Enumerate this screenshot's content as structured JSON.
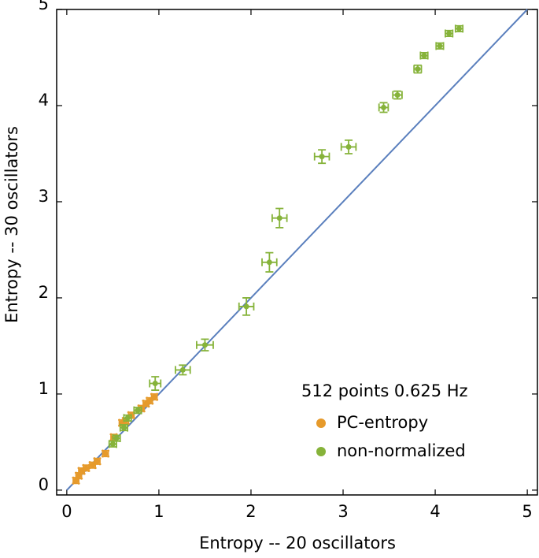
{
  "chart_data": {
    "type": "scatter",
    "xlabel": "Entropy -- 20 oscillators",
    "ylabel": "Entropy -- 30 oscillators",
    "legend_title": "512 points 0.625 Hz",
    "legend": "lower right",
    "xlim": [
      -0.11,
      5.11
    ],
    "ylim": [
      -0.05,
      5
    ],
    "xticks": [
      0,
      1,
      2,
      3,
      4,
      5
    ],
    "yticks": [
      0,
      1,
      2,
      3,
      4,
      5
    ],
    "diagonal": {
      "x": [
        0,
        5
      ],
      "y": [
        0,
        5
      ],
      "color": "#5a7fbd"
    },
    "series": [
      {
        "name": "PC-entropy",
        "color": "#e69a2b",
        "x": [
          0.1,
          0.13,
          0.16,
          0.21,
          0.28,
          0.33,
          0.42,
          0.51,
          0.6,
          0.64,
          0.7,
          0.81,
          0.86,
          0.9,
          0.95
        ],
        "values": [
          0.1,
          0.15,
          0.2,
          0.23,
          0.26,
          0.3,
          0.38,
          0.55,
          0.7,
          0.72,
          0.78,
          0.85,
          0.9,
          0.93,
          0.97
        ],
        "xerr": [
          0.03,
          0.03,
          0.03,
          0.03,
          0.03,
          0.03,
          0.03,
          0.03,
          0.03,
          0.03,
          0.03,
          0.03,
          0.03,
          0.03,
          0.03
        ],
        "yerr": [
          0.03,
          0.03,
          0.03,
          0.03,
          0.03,
          0.03,
          0.03,
          0.03,
          0.03,
          0.03,
          0.03,
          0.03,
          0.03,
          0.03,
          0.03
        ]
      },
      {
        "name": "non-normalized",
        "color": "#86b33a",
        "x": [
          0.5,
          0.54,
          0.62,
          0.66,
          0.77,
          0.96,
          1.26,
          1.5,
          1.95,
          2.2,
          2.31,
          2.77,
          3.06,
          3.44,
          3.59,
          3.81,
          3.88,
          4.05,
          4.15,
          4.26
        ],
        "values": [
          0.48,
          0.54,
          0.65,
          0.75,
          0.83,
          1.11,
          1.25,
          1.51,
          1.91,
          2.37,
          2.83,
          3.47,
          3.57,
          3.98,
          4.11,
          4.38,
          4.52,
          4.62,
          4.75,
          4.8
        ],
        "xerr": [
          0.04,
          0.04,
          0.04,
          0.04,
          0.04,
          0.06,
          0.08,
          0.09,
          0.08,
          0.08,
          0.08,
          0.08,
          0.08,
          0.05,
          0.05,
          0.04,
          0.04,
          0.04,
          0.04,
          0.04
        ],
        "yerr": [
          0.03,
          0.03,
          0.03,
          0.03,
          0.03,
          0.07,
          0.05,
          0.06,
          0.09,
          0.1,
          0.1,
          0.07,
          0.07,
          0.05,
          0.04,
          0.04,
          0.03,
          0.03,
          0.03,
          0.03
        ]
      }
    ]
  }
}
